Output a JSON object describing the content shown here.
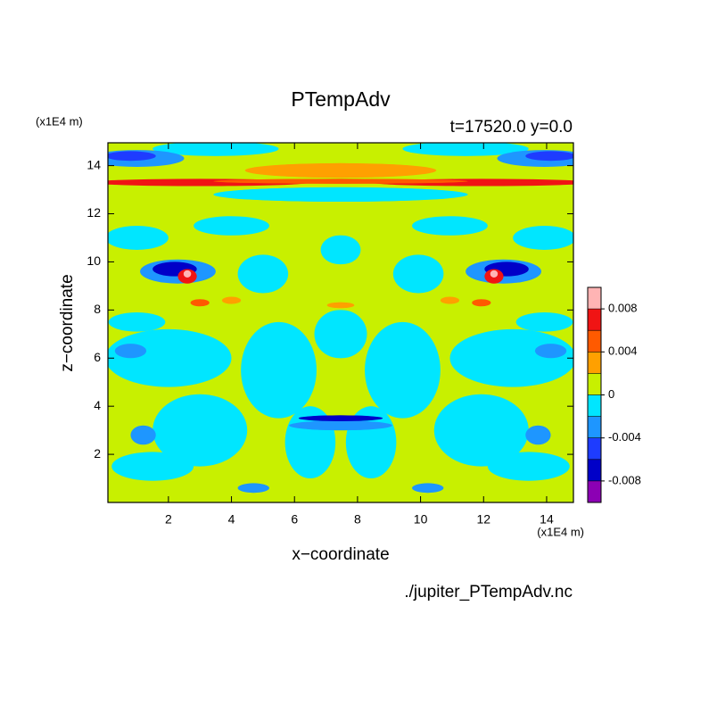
{
  "chart_data": {
    "type": "contour",
    "title": "PTempAdv",
    "subtitle": "t=17520.0 y=0.0",
    "x_label": "x−coordinate",
    "y_label": "z−coordinate",
    "x_unit": "(x1E4 m)",
    "y_unit": "(x1E4 m)",
    "source": "./jupiter_PTempAdv.nc",
    "xlim": [
      0.08,
      14.85
    ],
    "ylim": [
      0.0,
      14.95
    ],
    "xticks": [
      2,
      4,
      6,
      8,
      10,
      12,
      14
    ],
    "yticks": [
      2,
      4,
      6,
      8,
      10,
      12,
      14
    ],
    "colorbar": {
      "levels": [
        -0.01,
        -0.008,
        -0.006,
        -0.004,
        -0.002,
        0,
        0.002,
        0.004,
        0.006,
        0.008,
        0.01
      ],
      "colors": [
        "#8c00b4",
        "#0000c8",
        "#1e3cff",
        "#1e96ff",
        "#00e6ff",
        "#c8f000",
        "#ffa000",
        "#ff5a00",
        "#f01414",
        "#ffb4b4"
      ],
      "ticks": [
        -0.008,
        -0.004,
        0,
        0.004,
        0.008
      ]
    }
  }
}
